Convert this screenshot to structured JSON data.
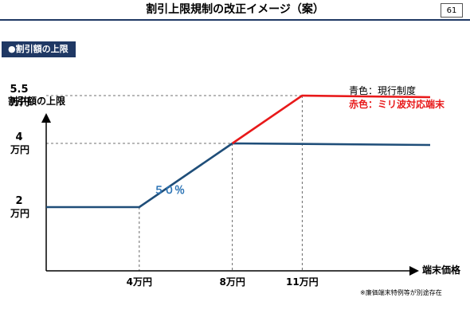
{
  "header": {
    "title": "割引上限規制の改正イメージ（案）",
    "page_number": "61"
  },
  "section_label": "●割引額の上限",
  "footnote": "※廉価端末特例等が別途存在",
  "chart_data": {
    "type": "line",
    "ylabel": "割引額の上限",
    "xlabel": "端末価格",
    "y_ticks": [
      {
        "value": 2,
        "line1": "2",
        "line2": "万円"
      },
      {
        "value": 4,
        "line1": "4",
        "line2": "万円"
      },
      {
        "value": 5.5,
        "line1": "5.5",
        "line2": "万円"
      }
    ],
    "x_ticks": [
      {
        "value": 4,
        "label": "4万円"
      },
      {
        "value": 8,
        "label": "8万円"
      },
      {
        "value": 11,
        "label": "11万円"
      }
    ],
    "xlim": [
      0,
      16.5
    ],
    "ylim": [
      0,
      7
    ],
    "legend": {
      "current": "青色：現行制度",
      "proposed": "赤色：ミリ波対応端末"
    },
    "annotation": "５０％",
    "colors": {
      "current": "#1f4e79",
      "proposed": "#e8191a",
      "annotation": "#2e75b6"
    },
    "series": [
      {
        "key": "current",
        "points": [
          [
            0,
            2
          ],
          [
            4,
            2
          ],
          [
            8,
            4
          ],
          [
            16.5,
            3.95
          ]
        ]
      },
      {
        "key": "proposed",
        "points": [
          [
            8,
            4
          ],
          [
            11,
            5.5
          ],
          [
            16.5,
            5.45
          ]
        ]
      }
    ]
  }
}
